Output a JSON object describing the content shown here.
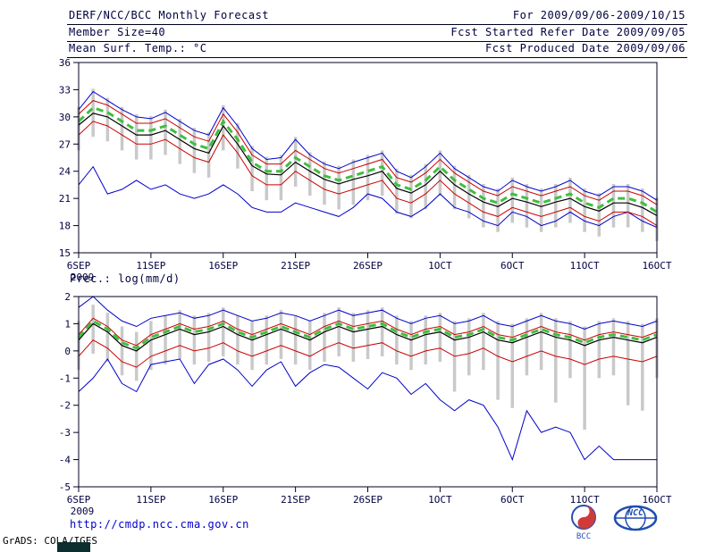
{
  "header": {
    "row1_left": "DERF/NCC/BCC Monthly Forecast",
    "row1_right": "For 2009/09/06-2009/10/15",
    "row2_left": "Member Size=40",
    "row2_right": "Fcst Started Refer Date 2009/09/05",
    "row3_left": "Mean Surf. Temp.: °C",
    "row3_right": "Fcst Produced Date 2009/09/06"
  },
  "footer": {
    "url": "http://cmdp.ncc.cma.gov.cn",
    "credit": "GrADS: COLA/IGES",
    "logos": [
      {
        "label": "BCC"
      },
      {
        "label": "NCC"
      }
    ]
  },
  "colors": {
    "envelope_blue": "#0000cc",
    "quartile_red": "#cc0000",
    "median_black": "#000000",
    "mean_green": "#3fbf3f",
    "spread_gray": "#c9c9c9",
    "text_navy": "#000040",
    "link_blue": "#0000cc"
  },
  "chart_data": [
    {
      "name": "mean-surf-temp",
      "type": "line",
      "title": "Mean Surf. Temp.: °C",
      "ylabel": "°C",
      "grid": false,
      "legend": "none",
      "ylim": [
        15,
        36
      ],
      "yticks": [
        15,
        18,
        21,
        24,
        27,
        30,
        33,
        36
      ],
      "n_days": 41,
      "xticks": [
        {
          "d": 0,
          "label": "6SEP",
          "sub": "2009"
        },
        {
          "d": 5,
          "label": "11SEP"
        },
        {
          "d": 10,
          "label": "16SEP"
        },
        {
          "d": 15,
          "label": "21SEP"
        },
        {
          "d": 20,
          "label": "26SEP"
        },
        {
          "d": 25,
          "label": "1OCT"
        },
        {
          "d": 30,
          "label": "6OCT"
        },
        {
          "d": 35,
          "label": "11OCT"
        },
        {
          "d": 40,
          "label": "16OCT"
        }
      ],
      "bars": {
        "color": "#c9c9c9",
        "high": [
          31.1,
          33.1,
          32.1,
          31.1,
          30.3,
          30.1,
          30.8,
          29.8,
          28.8,
          28.3,
          31.3,
          29.3,
          26.8,
          25.6,
          25.8,
          27.8,
          26.1,
          25.1,
          24.6,
          25.3,
          25.8,
          26.3,
          24.3,
          23.6,
          24.8,
          26.3,
          24.6,
          23.6,
          22.6,
          22.1,
          23.3,
          22.6,
          22.1,
          22.6,
          23.3,
          22.1,
          21.6,
          22.6,
          22.6,
          22.1,
          21.1
        ],
        "low": [
          26.3,
          27.8,
          27.3,
          26.3,
          25.3,
          25.3,
          25.8,
          24.8,
          23.8,
          23.3,
          26.3,
          24.3,
          21.8,
          20.8,
          20.8,
          22.3,
          21.3,
          20.3,
          19.8,
          20.3,
          20.8,
          21.3,
          19.3,
          18.8,
          19.8,
          21.3,
          19.8,
          18.8,
          17.8,
          17.3,
          18.3,
          17.8,
          17.3,
          17.8,
          18.3,
          17.3,
          16.8,
          17.8,
          17.8,
          17.3,
          16.3
        ]
      },
      "series": [
        {
          "name": "ensemble-max",
          "color": "#0000cc",
          "width": 1,
          "values": [
            30.8,
            32.8,
            31.8,
            30.8,
            30.0,
            29.8,
            30.5,
            29.5,
            28.5,
            28.0,
            31.0,
            29.0,
            26.5,
            25.3,
            25.5,
            27.5,
            25.8,
            24.8,
            24.3,
            25.0,
            25.5,
            26.0,
            24.0,
            23.3,
            24.5,
            26.0,
            24.3,
            23.3,
            22.3,
            21.8,
            23.0,
            22.3,
            21.8,
            22.3,
            23.0,
            21.8,
            21.3,
            22.3,
            22.3,
            21.8,
            20.8
          ]
        },
        {
          "name": "ensemble-min",
          "color": "#0000cc",
          "width": 1,
          "values": [
            22.5,
            24.5,
            21.5,
            22.0,
            23.0,
            22.0,
            22.5,
            21.5,
            21.0,
            21.5,
            22.5,
            21.5,
            20.0,
            19.5,
            19.5,
            20.5,
            20.0,
            19.5,
            19.0,
            20.0,
            21.5,
            21.0,
            19.5,
            19.0,
            20.0,
            21.5,
            20.0,
            19.5,
            18.5,
            18.0,
            19.5,
            19.0,
            18.0,
            18.5,
            19.5,
            18.5,
            18.0,
            19.0,
            19.5,
            18.5,
            17.8
          ]
        },
        {
          "name": "upper-quartile",
          "color": "#cc0000",
          "width": 1,
          "values": [
            30.3,
            31.8,
            31.3,
            30.3,
            29.3,
            29.3,
            29.8,
            28.8,
            27.8,
            27.3,
            30.3,
            28.3,
            25.8,
            24.8,
            24.8,
            26.3,
            25.3,
            24.3,
            23.8,
            24.3,
            24.8,
            25.3,
            23.3,
            22.8,
            23.8,
            25.3,
            23.8,
            22.8,
            21.8,
            21.3,
            22.3,
            21.8,
            21.3,
            21.8,
            22.3,
            21.3,
            20.8,
            21.8,
            21.8,
            21.3,
            20.3
          ]
        },
        {
          "name": "lower-quartile",
          "color": "#cc0000",
          "width": 1,
          "values": [
            28.0,
            29.5,
            29.0,
            28.0,
            27.0,
            27.0,
            27.5,
            26.5,
            25.5,
            25.0,
            28.0,
            26.0,
            23.5,
            22.5,
            22.5,
            24.0,
            23.0,
            22.0,
            21.5,
            22.0,
            22.5,
            23.0,
            21.0,
            20.5,
            21.5,
            23.0,
            21.5,
            20.5,
            19.5,
            19.0,
            20.0,
            19.5,
            19.0,
            19.5,
            20.0,
            19.0,
            18.5,
            19.5,
            19.5,
            19.0,
            18.0
          ]
        },
        {
          "name": "ensemble-median",
          "color": "#000000",
          "width": 1.2,
          "values": [
            29.1,
            30.4,
            30.0,
            29.0,
            28.0,
            28.0,
            28.5,
            27.5,
            26.5,
            26.0,
            29.0,
            27.0,
            24.6,
            23.7,
            23.6,
            25.0,
            24.0,
            23.1,
            22.6,
            23.1,
            23.5,
            24.0,
            22.1,
            21.6,
            22.5,
            24.0,
            22.5,
            21.5,
            20.6,
            20.1,
            21.0,
            20.6,
            20.1,
            20.6,
            21.0,
            20.1,
            19.6,
            20.5,
            20.5,
            20.0,
            19.1
          ]
        },
        {
          "name": "ensemble-mean",
          "color": "#3fbf3f",
          "width": 3,
          "dash": "8,5",
          "values": [
            29.5,
            31.0,
            30.5,
            29.5,
            28.5,
            28.5,
            29.0,
            28.0,
            27.0,
            26.5,
            29.5,
            27.5,
            25.0,
            24.0,
            24.0,
            25.5,
            24.5,
            23.5,
            23.0,
            23.5,
            24.0,
            24.5,
            22.5,
            22.0,
            23.0,
            24.5,
            23.0,
            22.0,
            21.0,
            20.5,
            21.5,
            21.0,
            20.5,
            21.0,
            21.5,
            20.5,
            20.0,
            21.0,
            21.0,
            20.5,
            19.5
          ]
        }
      ]
    },
    {
      "name": "precipitation",
      "type": "line",
      "title": "Prec.: log(mm/d)",
      "ylabel": "log(mm/d)",
      "grid": false,
      "legend": "none",
      "ylim": [
        -5,
        2
      ],
      "yticks": [
        -5,
        -4,
        -3,
        -2,
        -1,
        0,
        1,
        2
      ],
      "n_days": 41,
      "xticks": [
        {
          "d": 0,
          "label": "6SEP",
          "sub": "2009"
        },
        {
          "d": 5,
          "label": "11SEP"
        },
        {
          "d": 10,
          "label": "16SEP"
        },
        {
          "d": 15,
          "label": "21SEP"
        },
        {
          "d": 20,
          "label": "26SEP"
        },
        {
          "d": 25,
          "label": "1OCT"
        },
        {
          "d": 30,
          "label": "6OCT"
        },
        {
          "d": 35,
          "label": "11OCT"
        },
        {
          "d": 40,
          "label": "16OCT"
        }
      ],
      "bars": {
        "color": "#c9c9c9",
        "high": [
          1.1,
          1.7,
          1.4,
          0.9,
          0.7,
          1.1,
          1.3,
          1.5,
          1.3,
          1.4,
          1.6,
          1.3,
          1.1,
          1.3,
          1.5,
          1.3,
          1.1,
          1.4,
          1.6,
          1.4,
          1.5,
          1.6,
          1.3,
          1.1,
          1.3,
          1.4,
          1.1,
          1.2,
          1.4,
          1.1,
          1.0,
          1.2,
          1.4,
          1.2,
          1.1,
          0.9,
          1.1,
          1.2,
          1.1,
          1.0,
          1.2
        ],
        "low": [
          -0.7,
          -0.1,
          -0.4,
          -0.9,
          -1.1,
          -0.7,
          -0.5,
          -0.3,
          -0.5,
          -0.4,
          -0.2,
          -0.5,
          -0.7,
          -0.5,
          -0.3,
          -0.5,
          -0.7,
          -0.4,
          -0.2,
          -0.4,
          -0.3,
          -0.2,
          -0.5,
          -0.7,
          -0.5,
          -0.4,
          -1.5,
          -0.9,
          -0.7,
          -1.8,
          -2.1,
          -0.9,
          -0.7,
          -1.9,
          -1.0,
          -2.9,
          -1.0,
          -0.9,
          -2.0,
          -2.2,
          -1.0
        ]
      },
      "series": [
        {
          "name": "ensemble-max",
          "color": "#0000cc",
          "width": 1,
          "values": [
            1.6,
            2.0,
            1.5,
            1.1,
            0.9,
            1.2,
            1.3,
            1.4,
            1.2,
            1.3,
            1.5,
            1.3,
            1.1,
            1.2,
            1.4,
            1.3,
            1.1,
            1.3,
            1.5,
            1.3,
            1.4,
            1.5,
            1.2,
            1.0,
            1.2,
            1.3,
            1.0,
            1.1,
            1.3,
            1.0,
            0.9,
            1.1,
            1.3,
            1.1,
            1.0,
            0.8,
            1.0,
            1.1,
            1.0,
            0.9,
            1.1
          ]
        },
        {
          "name": "ensemble-min",
          "color": "#0000cc",
          "width": 1,
          "values": [
            -1.5,
            -1.0,
            -0.3,
            -1.2,
            -1.5,
            -0.5,
            -0.4,
            -0.3,
            -1.2,
            -0.5,
            -0.3,
            -0.7,
            -1.3,
            -0.7,
            -0.4,
            -1.3,
            -0.8,
            -0.5,
            -0.6,
            -1.0,
            -1.4,
            -0.8,
            -1.0,
            -1.6,
            -1.2,
            -1.8,
            -2.2,
            -1.8,
            -2.0,
            -2.8,
            -4.0,
            -2.2,
            -3.0,
            -2.8,
            -3.0,
            -4.0,
            -3.5,
            -4.0,
            -4.0,
            -4.0,
            -4.0
          ]
        },
        {
          "name": "upper-quartile",
          "color": "#cc0000",
          "width": 1,
          "values": [
            0.6,
            1.2,
            0.9,
            0.4,
            0.2,
            0.6,
            0.8,
            1.0,
            0.8,
            0.9,
            1.1,
            0.8,
            0.6,
            0.8,
            1.0,
            0.8,
            0.6,
            0.9,
            1.1,
            0.9,
            1.0,
            1.1,
            0.8,
            0.6,
            0.8,
            0.9,
            0.6,
            0.7,
            0.9,
            0.6,
            0.5,
            0.7,
            0.9,
            0.7,
            0.6,
            0.4,
            0.6,
            0.7,
            0.6,
            0.5,
            0.7
          ]
        },
        {
          "name": "lower-quartile",
          "color": "#cc0000",
          "width": 1,
          "values": [
            -0.2,
            0.4,
            0.1,
            -0.4,
            -0.6,
            -0.2,
            0.0,
            0.2,
            0.0,
            0.1,
            0.3,
            0.0,
            -0.2,
            0.0,
            0.2,
            0.0,
            -0.2,
            0.1,
            0.3,
            0.1,
            0.2,
            0.3,
            0.0,
            -0.2,
            0.0,
            0.1,
            -0.2,
            -0.1,
            0.1,
            -0.2,
            -0.4,
            -0.2,
            0.0,
            -0.2,
            -0.3,
            -0.5,
            -0.3,
            -0.2,
            -0.3,
            -0.4,
            -0.2
          ]
        },
        {
          "name": "ensemble-median",
          "color": "#000000",
          "width": 1.2,
          "values": [
            0.4,
            1.0,
            0.7,
            0.2,
            0.0,
            0.4,
            0.6,
            0.8,
            0.6,
            0.7,
            0.9,
            0.6,
            0.4,
            0.6,
            0.8,
            0.6,
            0.4,
            0.7,
            0.9,
            0.7,
            0.8,
            0.9,
            0.6,
            0.4,
            0.6,
            0.7,
            0.4,
            0.5,
            0.7,
            0.4,
            0.3,
            0.5,
            0.7,
            0.5,
            0.4,
            0.2,
            0.4,
            0.5,
            0.4,
            0.3,
            0.5
          ]
        },
        {
          "name": "ensemble-mean",
          "color": "#3fbf3f",
          "width": 3,
          "dash": "8,5",
          "values": [
            0.5,
            1.1,
            0.8,
            0.3,
            0.1,
            0.5,
            0.7,
            0.9,
            0.7,
            0.8,
            1.0,
            0.7,
            0.5,
            0.7,
            0.9,
            0.7,
            0.5,
            0.8,
            1.0,
            0.8,
            0.9,
            1.0,
            0.7,
            0.5,
            0.7,
            0.8,
            0.5,
            0.6,
            0.8,
            0.5,
            0.4,
            0.6,
            0.8,
            0.6,
            0.5,
            0.3,
            0.5,
            0.6,
            0.5,
            0.4,
            0.6
          ]
        }
      ]
    }
  ]
}
